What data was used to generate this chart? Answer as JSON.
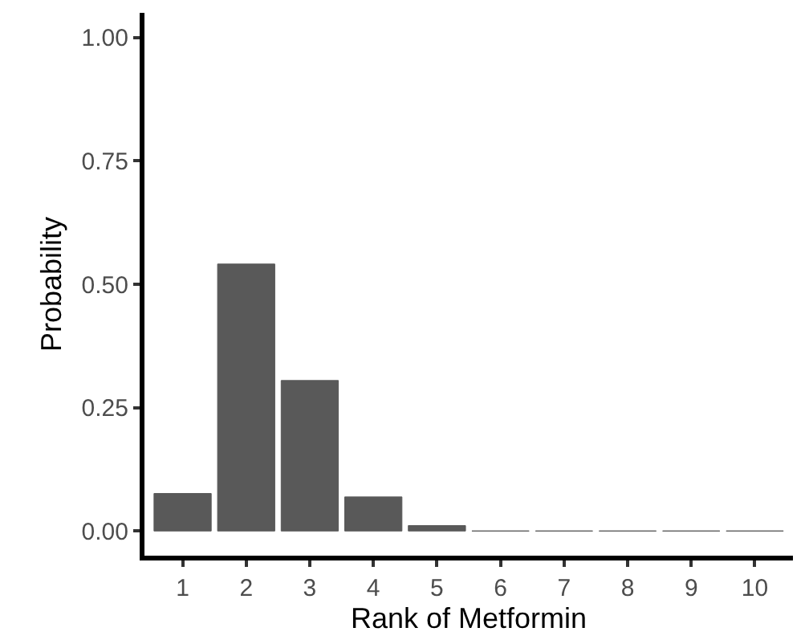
{
  "chart_data": {
    "type": "bar",
    "xlabel": "Rank of Metformin",
    "ylabel": "Probability",
    "categories": [
      "1",
      "2",
      "3",
      "4",
      "5",
      "6",
      "7",
      "8",
      "9",
      "10"
    ],
    "values": [
      0.076,
      0.541,
      0.305,
      0.069,
      0.011,
      0,
      0,
      0,
      0,
      0
    ],
    "color": "#595959",
    "ylim": [
      -0.05,
      1.05
    ],
    "yticks": [
      {
        "value": 0,
        "label": "0.00"
      },
      {
        "value": 0.25,
        "label": "0.25"
      },
      {
        "value": 0.5,
        "label": "0.50"
      },
      {
        "value": 0.75,
        "label": "0.75"
      },
      {
        "value": 1,
        "label": "1.00"
      }
    ],
    "grid": false,
    "legend": false
  }
}
